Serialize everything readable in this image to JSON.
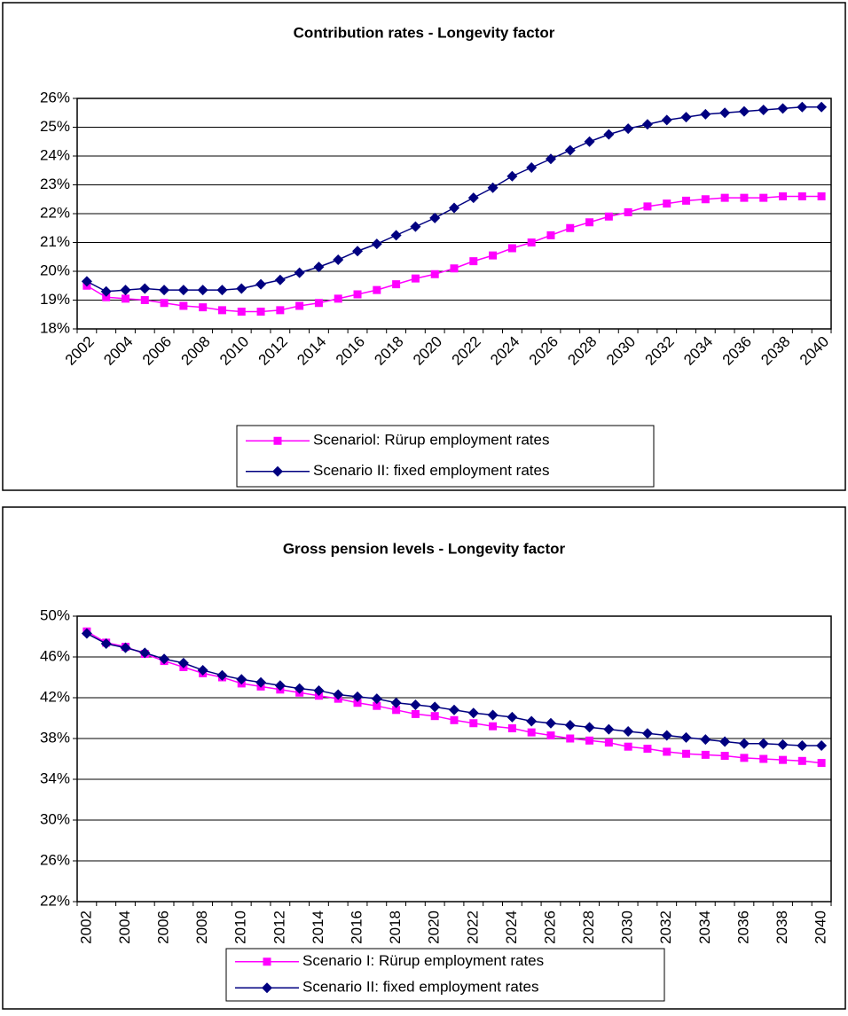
{
  "chart_data": [
    {
      "type": "line",
      "title": "Contribution rates - Longevity factor",
      "categories": [
        "2002",
        null,
        "2004",
        null,
        "2006",
        null,
        "2008",
        null,
        "2010",
        null,
        "2012",
        null,
        "2014",
        null,
        "2016",
        null,
        "2018",
        null,
        "2020",
        null,
        "2022",
        null,
        "2024",
        null,
        "2026",
        null,
        "2028",
        null,
        "2030",
        null,
        "2032",
        null,
        "2034",
        null,
        "2036",
        null,
        "2038",
        null,
        "2040"
      ],
      "ylim": [
        18,
        26
      ],
      "yticks": [
        {
          "value": 18,
          "label": "18%"
        },
        {
          "value": 19,
          "label": "19%"
        },
        {
          "value": 20,
          "label": "20%"
        },
        {
          "value": 21,
          "label": "21%"
        },
        {
          "value": 22,
          "label": "22%"
        },
        {
          "value": 23,
          "label": "23%"
        },
        {
          "value": 24,
          "label": "24%"
        },
        {
          "value": 25,
          "label": "25%"
        },
        {
          "value": 26,
          "label": "26%"
        }
      ],
      "grid": true,
      "legend": "bottom",
      "series": [
        {
          "name": "Scenariol: Rürup employment rates",
          "color": "#ff00ff",
          "marker": "square",
          "values": [
            19.5,
            19.1,
            19.05,
            19.0,
            18.9,
            18.8,
            18.75,
            18.65,
            18.6,
            18.6,
            18.65,
            18.8,
            18.9,
            19.05,
            19.2,
            19.35,
            19.55,
            19.75,
            19.9,
            20.1,
            20.35,
            20.55,
            20.8,
            21.0,
            21.25,
            21.5,
            21.7,
            21.9,
            22.05,
            22.25,
            22.35,
            22.45,
            22.5,
            22.55,
            22.55,
            22.55,
            22.6,
            22.6,
            22.6
          ]
        },
        {
          "name": "Scenario II: fixed employment rates",
          "color": "#000080",
          "marker": "diamond",
          "values": [
            19.65,
            19.3,
            19.35,
            19.4,
            19.35,
            19.35,
            19.35,
            19.35,
            19.4,
            19.55,
            19.7,
            19.95,
            20.15,
            20.4,
            20.7,
            20.95,
            21.25,
            21.55,
            21.85,
            22.2,
            22.55,
            22.9,
            23.3,
            23.6,
            23.9,
            24.2,
            24.5,
            24.75,
            24.95,
            25.1,
            25.25,
            25.35,
            25.45,
            25.5,
            25.55,
            25.6,
            25.65,
            25.7,
            25.7
          ]
        }
      ]
    },
    {
      "type": "line",
      "title": "Gross pension levels - Longevity factor",
      "categories": [
        "2002",
        null,
        "2004",
        null,
        "2006",
        null,
        "2008",
        null,
        "2010",
        null,
        "2012",
        null,
        "2014",
        null,
        "2016",
        null,
        "2018",
        null,
        "2020",
        null,
        "2022",
        null,
        "2024",
        null,
        "2026",
        null,
        "2028",
        null,
        "2030",
        null,
        "2032",
        null,
        "2034",
        null,
        "2036",
        null,
        "2038",
        null,
        "2040"
      ],
      "ylim": [
        22,
        50
      ],
      "yticks": [
        {
          "value": 22,
          "label": "22%"
        },
        {
          "value": 26,
          "label": "26%"
        },
        {
          "value": 30,
          "label": "30%"
        },
        {
          "value": 34,
          "label": "34%"
        },
        {
          "value": 38,
          "label": "38%"
        },
        {
          "value": 42,
          "label": "42%"
        },
        {
          "value": 46,
          "label": "46%"
        },
        {
          "value": 50,
          "label": "50%"
        }
      ],
      "grid": true,
      "legend": "bottom",
      "series": [
        {
          "name": "Scenario I: Rürup employment rates",
          "color": "#ff00ff",
          "marker": "square",
          "values": [
            48.5,
            47.4,
            47.0,
            46.3,
            45.6,
            45.0,
            44.4,
            44.0,
            43.4,
            43.1,
            42.8,
            42.5,
            42.2,
            41.9,
            41.5,
            41.2,
            40.8,
            40.4,
            40.2,
            39.8,
            39.5,
            39.2,
            39.0,
            38.6,
            38.3,
            38.0,
            37.8,
            37.6,
            37.2,
            37.0,
            36.7,
            36.5,
            36.4,
            36.3,
            36.1,
            36.0,
            35.9,
            35.8,
            35.6
          ]
        },
        {
          "name": "Scenario II: fixed employment rates",
          "color": "#000080",
          "marker": "diamond",
          "values": [
            48.3,
            47.3,
            46.9,
            46.4,
            45.8,
            45.4,
            44.7,
            44.2,
            43.8,
            43.5,
            43.2,
            42.9,
            42.7,
            42.3,
            42.1,
            41.9,
            41.5,
            41.3,
            41.1,
            40.8,
            40.5,
            40.3,
            40.1,
            39.7,
            39.5,
            39.3,
            39.1,
            38.9,
            38.7,
            38.5,
            38.3,
            38.1,
            37.9,
            37.7,
            37.5,
            37.5,
            37.4,
            37.3,
            37.3
          ]
        }
      ]
    }
  ]
}
